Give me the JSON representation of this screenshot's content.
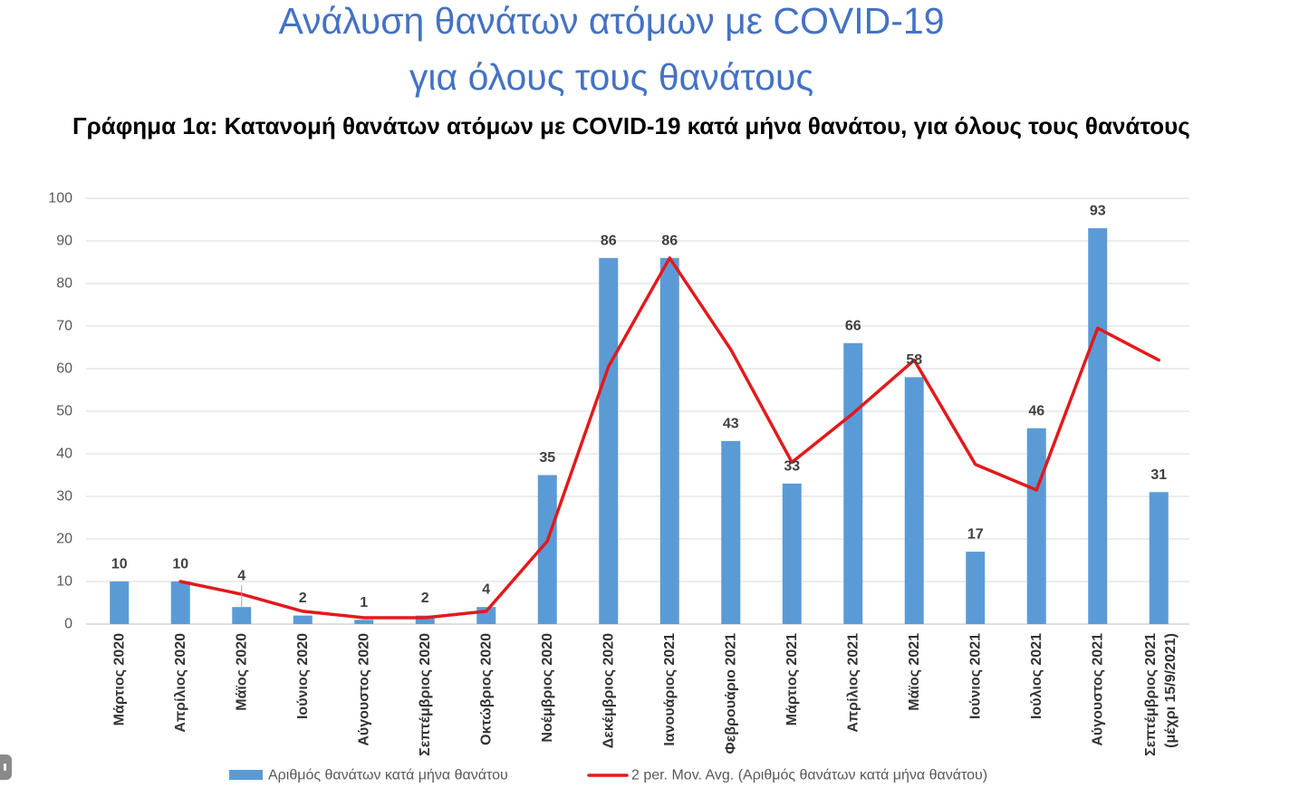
{
  "header": {
    "title_line1": "Ανάλυση θανάτων ατόμων με COVID-19",
    "title_line2": "για όλους τους θανάτους",
    "color": "#4472C4"
  },
  "chart_data": {
    "type": "bar",
    "title": "Γράφημα 1α: Κατανομή θανάτων ατόμων με COVID-19 κατά μήνα θανάτου, για όλους τους θανάτους",
    "xlabel": "",
    "ylabel": "",
    "categories": [
      "Μάρτιος 2020",
      "Απρίλιος 2020",
      "Μάϊος 2020",
      "Ιούνιος 2020",
      "Αύγουστος 2020",
      "Σεπτέμβριος 2020",
      "Οκτώβριος 2020",
      "Νοέμβριος 2020",
      "Δεκέμβριος 2020",
      "Ιανουάριος 2021",
      "Φεβρουάριο 2021",
      "Μάρτιος 2021",
      "Απρίλιος 2021",
      "Μάϊος 2021",
      "Ιούνιος 2021",
      "Ιούλιος 2021",
      "Αύγουστος 2021",
      "Σεπτέμβριος 2021\n(μέχρι 15/9/2021)"
    ],
    "series": [
      {
        "name": "Αριθμός θανάτων κατά μήνα θανάτου",
        "type": "bar",
        "color": "#5B9BD5",
        "values": [
          10,
          10,
          4,
          2,
          1,
          2,
          4,
          35,
          86,
          86,
          43,
          33,
          66,
          58,
          17,
          46,
          93,
          31
        ]
      },
      {
        "name": "2 per. Mov. Avg. (Αριθμός θανάτων κατά μήνα θανάτου)",
        "type": "line",
        "color": "#E3191C",
        "values": [
          null,
          10,
          7,
          3,
          1.5,
          1.5,
          3,
          19.5,
          60.5,
          86,
          64.5,
          38,
          49.5,
          62,
          37.5,
          31.5,
          69.5,
          62
        ]
      }
    ],
    "ylim": [
      0,
      100
    ],
    "yticks": [
      0,
      10,
      20,
      30,
      40,
      50,
      60,
      70,
      80,
      90,
      100
    ],
    "grid": true,
    "data_labels": true,
    "legend_position": "bottom"
  }
}
